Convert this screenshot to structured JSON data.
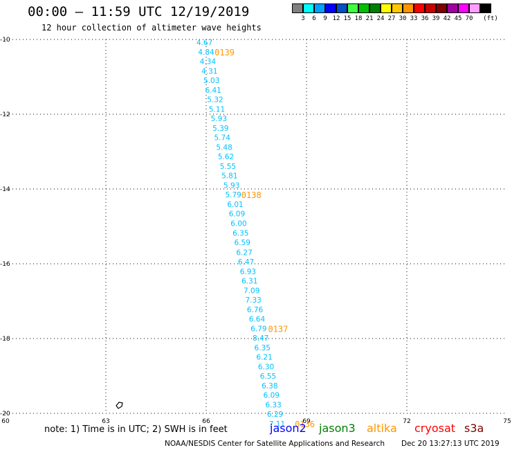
{
  "header": {
    "title": "00:00 – 11:59 UTC 12/19/2019",
    "subtitle": "12 hour collection of altimeter wave heights"
  },
  "legend": {
    "unit": "(ft)",
    "colors": [
      "#808080",
      "#00ffff",
      "#00a0ff",
      "#0000ff",
      "#0050c8",
      "#40ff40",
      "#00c000",
      "#008000",
      "#ffff00",
      "#ffc800",
      "#ff9600",
      "#ff0000",
      "#c80000",
      "#800000",
      "#a000a0",
      "#ff00ff",
      "#ffa0ff",
      "#000000"
    ],
    "labels": [
      "3",
      "6",
      "9",
      "12",
      "15",
      "18",
      "21",
      "24",
      "27",
      "30",
      "33",
      "36",
      "39",
      "42",
      "45",
      "70"
    ]
  },
  "map": {
    "x_ticks": [
      "60",
      "63",
      "66",
      "69",
      "72",
      "75"
    ],
    "y_ticks": [
      "-10",
      "-12",
      "-14",
      "-16",
      "-18",
      "-20"
    ],
    "lon_range": [
      60,
      75
    ],
    "lat_range": [
      -20,
      -10
    ]
  },
  "chart_data": {
    "type": "scatter",
    "xlim": [
      60,
      75
    ],
    "ylim": [
      -20,
      -10
    ],
    "track_color": "#00c0ff",
    "label_color": "#ff9600",
    "points": [
      {
        "lon": 65.95,
        "lat": -10.07,
        "v": "4.67"
      },
      {
        "lon": 66.0,
        "lat": -10.33,
        "v": "4.84"
      },
      {
        "lon": 66.05,
        "lat": -10.58,
        "v": "4.34"
      },
      {
        "lon": 66.1,
        "lat": -10.84,
        "v": "4.31"
      },
      {
        "lon": 66.16,
        "lat": -11.09,
        "v": "5.03"
      },
      {
        "lon": 66.21,
        "lat": -11.35,
        "v": "6.41"
      },
      {
        "lon": 66.27,
        "lat": -11.6,
        "v": "5.32"
      },
      {
        "lon": 66.32,
        "lat": -11.86,
        "v": "5.11"
      },
      {
        "lon": 66.38,
        "lat": -12.11,
        "v": "5.93"
      },
      {
        "lon": 66.43,
        "lat": -12.37,
        "v": "5.39"
      },
      {
        "lon": 66.48,
        "lat": -12.62,
        "v": "5.74"
      },
      {
        "lon": 66.54,
        "lat": -12.88,
        "v": "5.48"
      },
      {
        "lon": 66.59,
        "lat": -13.13,
        "v": "5.62"
      },
      {
        "lon": 66.65,
        "lat": -13.39,
        "v": "5.55"
      },
      {
        "lon": 66.7,
        "lat": -13.64,
        "v": "5.81"
      },
      {
        "lon": 66.76,
        "lat": -13.9,
        "v": "5.93"
      },
      {
        "lon": 66.81,
        "lat": -14.15,
        "v": "5.79"
      },
      {
        "lon": 66.87,
        "lat": -14.41,
        "v": "6.01"
      },
      {
        "lon": 66.92,
        "lat": -14.66,
        "v": "6.09"
      },
      {
        "lon": 66.97,
        "lat": -14.92,
        "v": "6.00"
      },
      {
        "lon": 67.03,
        "lat": -15.18,
        "v": "6.35"
      },
      {
        "lon": 67.08,
        "lat": -15.43,
        "v": "6.59"
      },
      {
        "lon": 67.14,
        "lat": -15.69,
        "v": "6.27"
      },
      {
        "lon": 67.19,
        "lat": -15.94,
        "v": "6.47"
      },
      {
        "lon": 67.25,
        "lat": -16.2,
        "v": "6.93"
      },
      {
        "lon": 67.3,
        "lat": -16.45,
        "v": "6.31"
      },
      {
        "lon": 67.36,
        "lat": -16.71,
        "v": "7.09"
      },
      {
        "lon": 67.41,
        "lat": -16.96,
        "v": "7.33"
      },
      {
        "lon": 67.46,
        "lat": -17.22,
        "v": "6.76"
      },
      {
        "lon": 67.52,
        "lat": -17.47,
        "v": "6.64"
      },
      {
        "lon": 67.57,
        "lat": -17.73,
        "v": "6.79"
      },
      {
        "lon": 67.63,
        "lat": -17.98,
        "v": "8.47"
      },
      {
        "lon": 67.68,
        "lat": -18.24,
        "v": "6.35"
      },
      {
        "lon": 67.74,
        "lat": -18.49,
        "v": "6.21"
      },
      {
        "lon": 67.79,
        "lat": -18.75,
        "v": "6.30"
      },
      {
        "lon": 67.85,
        "lat": -19.0,
        "v": "6.55"
      },
      {
        "lon": 67.9,
        "lat": -19.26,
        "v": "6.38"
      },
      {
        "lon": 67.95,
        "lat": -19.51,
        "v": "6.09"
      },
      {
        "lon": 68.01,
        "lat": -19.77,
        "v": "6.33"
      },
      {
        "lon": 68.06,
        "lat": -20.02,
        "v": "6.29"
      },
      {
        "lon": 68.12,
        "lat": -20.28,
        "v": "7.11"
      }
    ],
    "time_labels": [
      {
        "lon": 66.55,
        "lat": -10.33,
        "text": "0139"
      },
      {
        "lon": 67.35,
        "lat": -14.15,
        "text": "0138"
      },
      {
        "lon": 68.15,
        "lat": -17.73,
        "text": "0137"
      },
      {
        "lon": 68.95,
        "lat": -20.28,
        "text": "0136"
      }
    ]
  },
  "footer": {
    "note": "note: 1) Time is in UTC; 2) SWH is in feet",
    "satellites": [
      {
        "name": "jason2",
        "color": "#0000ff"
      },
      {
        "name": "jason3",
        "color": "#008000"
      },
      {
        "name": "altika",
        "color": "#ff9600"
      },
      {
        "name": "cryosat",
        "color": "#ff0000"
      },
      {
        "name": "s3a",
        "color": "#800000"
      }
    ],
    "credit": "NOAA/NESDIS Center for Satellite Applications and Research",
    "timestamp": "Dec 20 13:27:13 UTC 2019"
  }
}
